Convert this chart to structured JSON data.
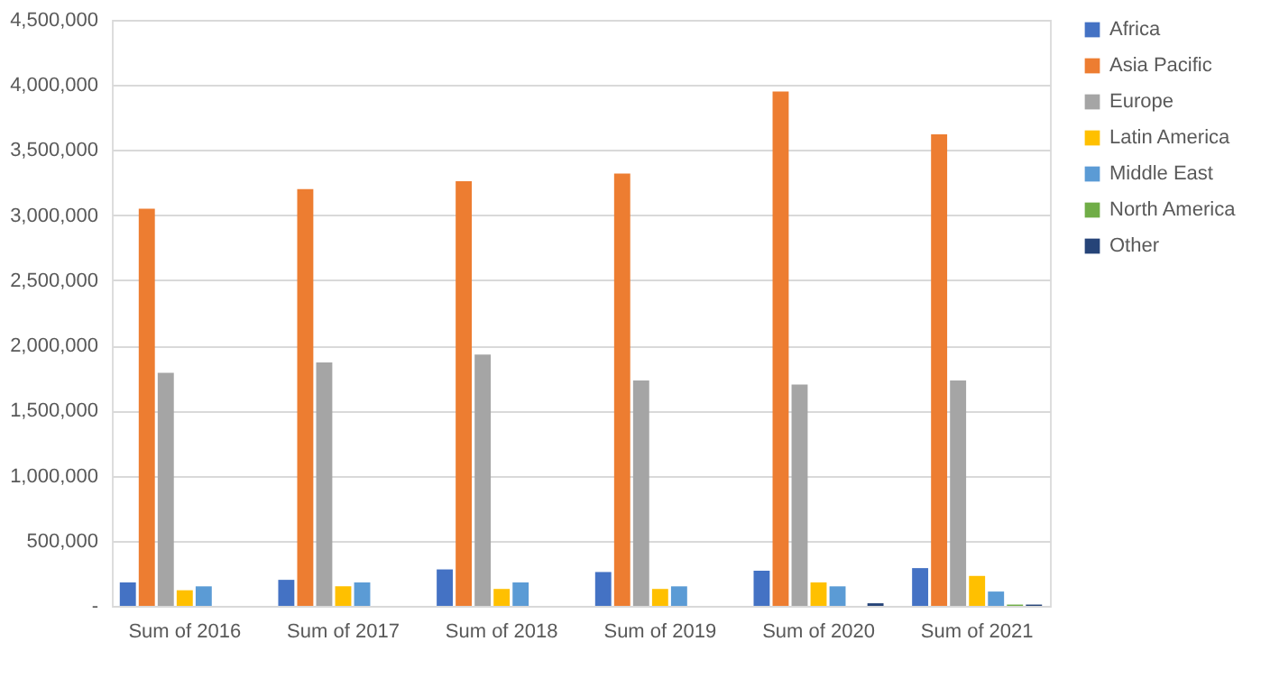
{
  "chart_data": {
    "type": "bar",
    "categories": [
      "Sum of 2016",
      "Sum of 2017",
      "Sum of 2018",
      "Sum of 2019",
      "Sum of 2020",
      "Sum of 2021"
    ],
    "series": [
      {
        "name": "Africa",
        "color": "#4472c4",
        "values": [
          180000,
          200000,
          280000,
          260000,
          270000,
          290000
        ]
      },
      {
        "name": "Asia Pacific",
        "color": "#ed7d31",
        "values": [
          3050000,
          3200000,
          3260000,
          3320000,
          3950000,
          3620000
        ]
      },
      {
        "name": "Europe",
        "color": "#a5a5a5",
        "values": [
          1790000,
          1870000,
          1930000,
          1730000,
          1700000,
          1730000
        ]
      },
      {
        "name": "Latin America",
        "color": "#ffc000",
        "values": [
          120000,
          150000,
          130000,
          130000,
          180000,
          230000
        ]
      },
      {
        "name": "Middle East",
        "color": "#5b9bd5",
        "values": [
          150000,
          180000,
          180000,
          150000,
          150000,
          110000
        ]
      },
      {
        "name": "North America",
        "color": "#70ad47",
        "values": [
          0,
          0,
          0,
          0,
          0,
          10000
        ]
      },
      {
        "name": "Other",
        "color": "#264478",
        "values": [
          0,
          0,
          0,
          0,
          20000,
          10000
        ]
      }
    ],
    "ylim": [
      0,
      4500000
    ],
    "yticks": [
      {
        "value": 0,
        "label": "-"
      },
      {
        "value": 500000,
        "label": "500,000"
      },
      {
        "value": 1000000,
        "label": "1,000,000"
      },
      {
        "value": 1500000,
        "label": "1,500,000"
      },
      {
        "value": 2000000,
        "label": "2,000,000"
      },
      {
        "value": 2500000,
        "label": "2,500,000"
      },
      {
        "value": 3000000,
        "label": "3,000,000"
      },
      {
        "value": 3500000,
        "label": "3,500,000"
      },
      {
        "value": 4000000,
        "label": "4,000,000"
      },
      {
        "value": 4500000,
        "label": "4,500,000"
      }
    ],
    "grid": "y",
    "legend": "right"
  }
}
